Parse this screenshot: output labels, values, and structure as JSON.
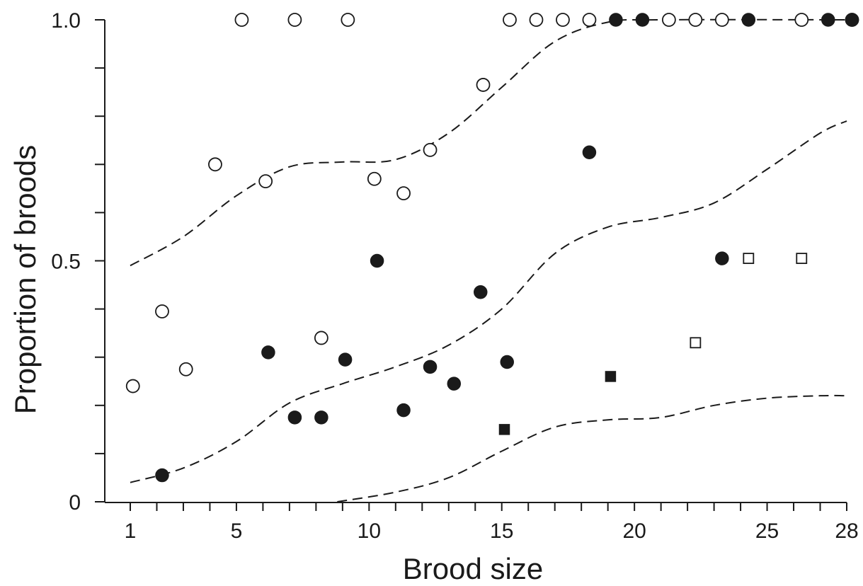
{
  "chart_data": {
    "type": "scatter",
    "title": "",
    "xlabel": "Brood size",
    "ylabel": "Proportion of broods",
    "xlim": [
      1,
      28
    ],
    "ylim": [
      0,
      1
    ],
    "x_tick_labels": [
      "1",
      "5",
      "10",
      "15",
      "20",
      "25",
      "28"
    ],
    "x_tick_values": [
      1,
      5,
      10,
      15,
      20,
      25,
      28
    ],
    "y_tick_labels": [
      "0",
      "0.5",
      "1.0"
    ],
    "y_tick_values": [
      0,
      0.5,
      1.0
    ],
    "grid": false,
    "legend": "none",
    "series": [
      {
        "marker": "open-circle",
        "color": "#1a1a1a",
        "points": [
          [
            1.1,
            0.24
          ],
          [
            2.2,
            0.395
          ],
          [
            3.1,
            0.275
          ],
          [
            4.2,
            0.7
          ],
          [
            5.2,
            1.0
          ],
          [
            6.1,
            0.665
          ],
          [
            7.2,
            1.0
          ],
          [
            8.2,
            0.34
          ],
          [
            9.2,
            1.0
          ],
          [
            10.2,
            0.67
          ],
          [
            11.3,
            0.64
          ],
          [
            12.3,
            0.73
          ],
          [
            14.3,
            0.865
          ],
          [
            15.3,
            1.0
          ],
          [
            16.3,
            1.0
          ],
          [
            17.3,
            1.0
          ],
          [
            18.3,
            1.0
          ],
          [
            21.3,
            1.0
          ],
          [
            22.3,
            1.0
          ],
          [
            23.3,
            1.0
          ],
          [
            26.3,
            1.0
          ],
          [
            28.2,
            1.0
          ]
        ]
      },
      {
        "marker": "filled-circle",
        "color": "#1a1a1a",
        "points": [
          [
            2.2,
            0.055
          ],
          [
            6.2,
            0.31
          ],
          [
            7.2,
            0.175
          ],
          [
            8.2,
            0.175
          ],
          [
            9.1,
            0.295
          ],
          [
            10.3,
            0.5
          ],
          [
            11.3,
            0.19
          ],
          [
            12.3,
            0.28
          ],
          [
            13.2,
            0.245
          ],
          [
            14.2,
            0.435
          ],
          [
            15.2,
            0.29
          ],
          [
            18.3,
            0.725
          ],
          [
            19.3,
            1.0
          ],
          [
            20.3,
            1.0
          ],
          [
            23.3,
            0.505
          ],
          [
            24.3,
            1.0
          ],
          [
            27.3,
            1.0
          ],
          [
            28.2,
            1.0
          ]
        ]
      },
      {
        "marker": "open-square",
        "color": "#1a1a1a",
        "points": [
          [
            22.3,
            0.33
          ],
          [
            24.3,
            0.505
          ],
          [
            26.3,
            0.505
          ]
        ]
      },
      {
        "marker": "filled-square",
        "color": "#1a1a1a",
        "points": [
          [
            15.1,
            0.15
          ],
          [
            19.1,
            0.26
          ]
        ]
      }
    ],
    "curves": [
      {
        "style": "dashed",
        "points": [
          [
            1,
            0.49
          ],
          [
            3,
            0.55
          ],
          [
            5,
            0.635
          ],
          [
            7,
            0.695
          ],
          [
            9,
            0.705
          ],
          [
            11,
            0.71
          ],
          [
            13,
            0.765
          ],
          [
            15,
            0.86
          ],
          [
            17,
            0.955
          ],
          [
            19,
            0.995
          ],
          [
            21,
            1.0
          ],
          [
            28,
            1.0
          ]
        ]
      },
      {
        "style": "dashed",
        "points": [
          [
            1,
            0.04
          ],
          [
            3,
            0.07
          ],
          [
            5,
            0.125
          ],
          [
            7,
            0.205
          ],
          [
            9,
            0.245
          ],
          [
            11,
            0.28
          ],
          [
            13,
            0.325
          ],
          [
            15,
            0.4
          ],
          [
            17,
            0.515
          ],
          [
            19,
            0.57
          ],
          [
            21,
            0.59
          ],
          [
            23,
            0.62
          ],
          [
            25,
            0.69
          ],
          [
            27,
            0.765
          ],
          [
            28,
            0.79
          ]
        ]
      },
      {
        "style": "dashed",
        "points": [
          [
            8.8,
            0.0
          ],
          [
            11,
            0.02
          ],
          [
            13,
            0.05
          ],
          [
            15,
            0.105
          ],
          [
            17,
            0.155
          ],
          [
            19,
            0.17
          ],
          [
            21,
            0.175
          ],
          [
            23,
            0.2
          ],
          [
            25,
            0.215
          ],
          [
            27,
            0.22
          ],
          [
            28,
            0.22
          ]
        ]
      }
    ]
  }
}
